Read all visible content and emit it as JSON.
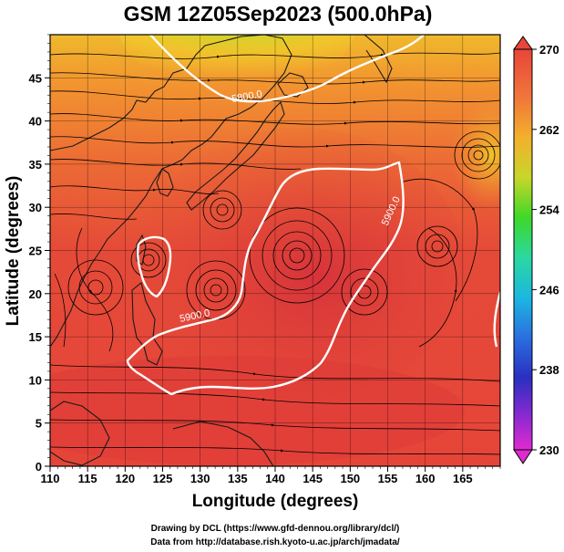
{
  "title": "GSM 12Z05Sep2023 (500.0hPa)",
  "x_axis": {
    "label": "Longitude (degrees)",
    "ticks": [
      "110",
      "115",
      "120",
      "125",
      "130",
      "135",
      "140",
      "145",
      "150",
      "155",
      "160",
      "165"
    ]
  },
  "y_axis": {
    "label": "Latitude  (degrees)",
    "ticks": [
      "0",
      "5",
      "10",
      "15",
      "20",
      "25",
      "30",
      "35",
      "40",
      "45"
    ]
  },
  "colorbar": {
    "ticks": [
      "270",
      "262",
      "254",
      "246",
      "238",
      "230"
    ]
  },
  "contour_labels": [
    "5800.0",
    "5900.0",
    "5900.0"
  ],
  "credits": {
    "line1": "Drawing by DCL (https://www.gfd-dennou.org/library/dcl/)",
    "line2": "Data from http://database.rish.kyoto-u.ac.jp/arch/jmadata/"
  },
  "colors": {
    "warm": "#e8463a",
    "hot": "#d9353a",
    "orange": "#f29b2e",
    "yellow": "#f2cf2a",
    "green": "#52d92a",
    "cyan": "#1cb7e0",
    "blue": "#2a3fd9",
    "magenta": "#e02ad0",
    "land": "#222222",
    "contour": "#ffffff"
  },
  "chart_data": {
    "type": "heatmap",
    "title": "GSM 12Z05Sep2023 (500.0hPa)",
    "xlabel": "Longitude (degrees)",
    "ylabel": "Latitude  (degrees)",
    "xlim": [
      110,
      170
    ],
    "ylim": [
      0,
      50
    ],
    "x_ticks": [
      110,
      115,
      120,
      125,
      130,
      135,
      140,
      145,
      150,
      155,
      160,
      165
    ],
    "y_ticks": [
      0,
      5,
      10,
      15,
      20,
      25,
      30,
      35,
      40,
      45
    ],
    "colorbar_range": [
      230,
      270
    ],
    "colorbar_ticks": [
      230,
      238,
      246,
      254,
      262,
      270
    ],
    "contours": [
      5800.0,
      5900.0
    ],
    "streamlines": true,
    "grid": true
  }
}
